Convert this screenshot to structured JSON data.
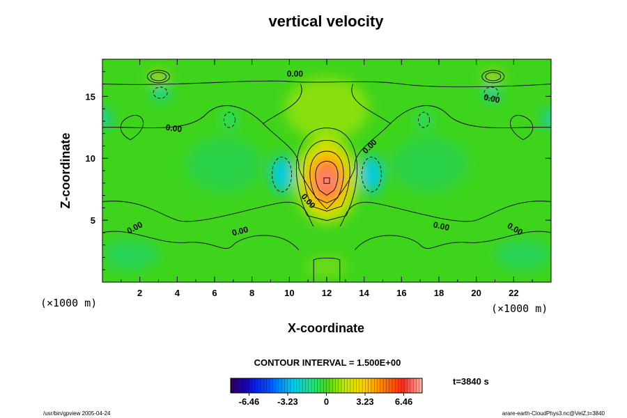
{
  "chart_data": {
    "type": "heatmap",
    "title": "vertical velocity",
    "xlabel": "X-coordinate",
    "ylabel": "Z-coordinate",
    "x_unit": "(×1000 m)",
    "z_unit": "(×1000 m)",
    "xlim": [
      0,
      24
    ],
    "ylim": [
      0,
      18
    ],
    "x_ticks": [
      2,
      4,
      6,
      8,
      10,
      12,
      14,
      16,
      18,
      20,
      22
    ],
    "y_ticks": [
      5,
      10,
      15
    ],
    "contour_interval_text": "CONTOUR INTERVAL = 1.500E+00",
    "contour_interval": 1.5,
    "time_label": "t=3840 s",
    "colorbar": {
      "range": [
        -8.0,
        8.0
      ],
      "tick_values": [
        -6.46,
        -3.23,
        0,
        3.23,
        6.46
      ],
      "tick_labels": [
        "-6.46",
        "-3.23",
        "0",
        "3.23",
        "6.46"
      ]
    },
    "contour_labels": [
      {
        "text": "0.00",
        "x": 10.3,
        "z": 16.6,
        "angle": 0
      },
      {
        "text": "0.00",
        "x": 3.8,
        "z": 12.2,
        "angle": 8
      },
      {
        "text": "0.00",
        "x": 20.8,
        "z": 14.6,
        "angle": 12
      },
      {
        "text": "0.00",
        "x": 14.4,
        "z": 10.8,
        "angle": -45
      },
      {
        "text": "0.00",
        "x": 10.9,
        "z": 6.4,
        "angle": 48
      },
      {
        "text": "0.00",
        "x": 1.8,
        "z": 4.2,
        "angle": -28
      },
      {
        "text": "0.00",
        "x": 7.4,
        "z": 3.9,
        "angle": -14
      },
      {
        "text": "0.00",
        "x": 18.1,
        "z": 4.3,
        "angle": 12
      },
      {
        "text": "0.00",
        "x": 22.0,
        "z": 4.1,
        "angle": 30
      }
    ],
    "features": {
      "updraft_max": {
        "x": 12.0,
        "z": 8.2,
        "value": 7.5
      },
      "downdraft_left": {
        "x": 9.6,
        "z": 8.7,
        "value": -2.8
      },
      "downdraft_right": {
        "x": 14.4,
        "z": 8.7,
        "value": -2.8
      },
      "upper_up_left": {
        "x": 3.0,
        "z": 16.6,
        "value": 3.0
      },
      "upper_up_right": {
        "x": 20.9,
        "z": 16.6,
        "value": 3.0
      },
      "upper_down_left": {
        "x": 3.1,
        "z": 15.3,
        "value": -2.2
      },
      "upper_down_right": {
        "x": 20.8,
        "z": 15.3,
        "value": -2.2
      }
    }
  },
  "footer": {
    "left": "/usr/bin/gpview 2005-04-24",
    "right": "arare-earth-CloudPhys3.nc@VelZ,t=3840"
  },
  "colors": {
    "background_field": "#3fd41c",
    "axis": "#000000"
  }
}
